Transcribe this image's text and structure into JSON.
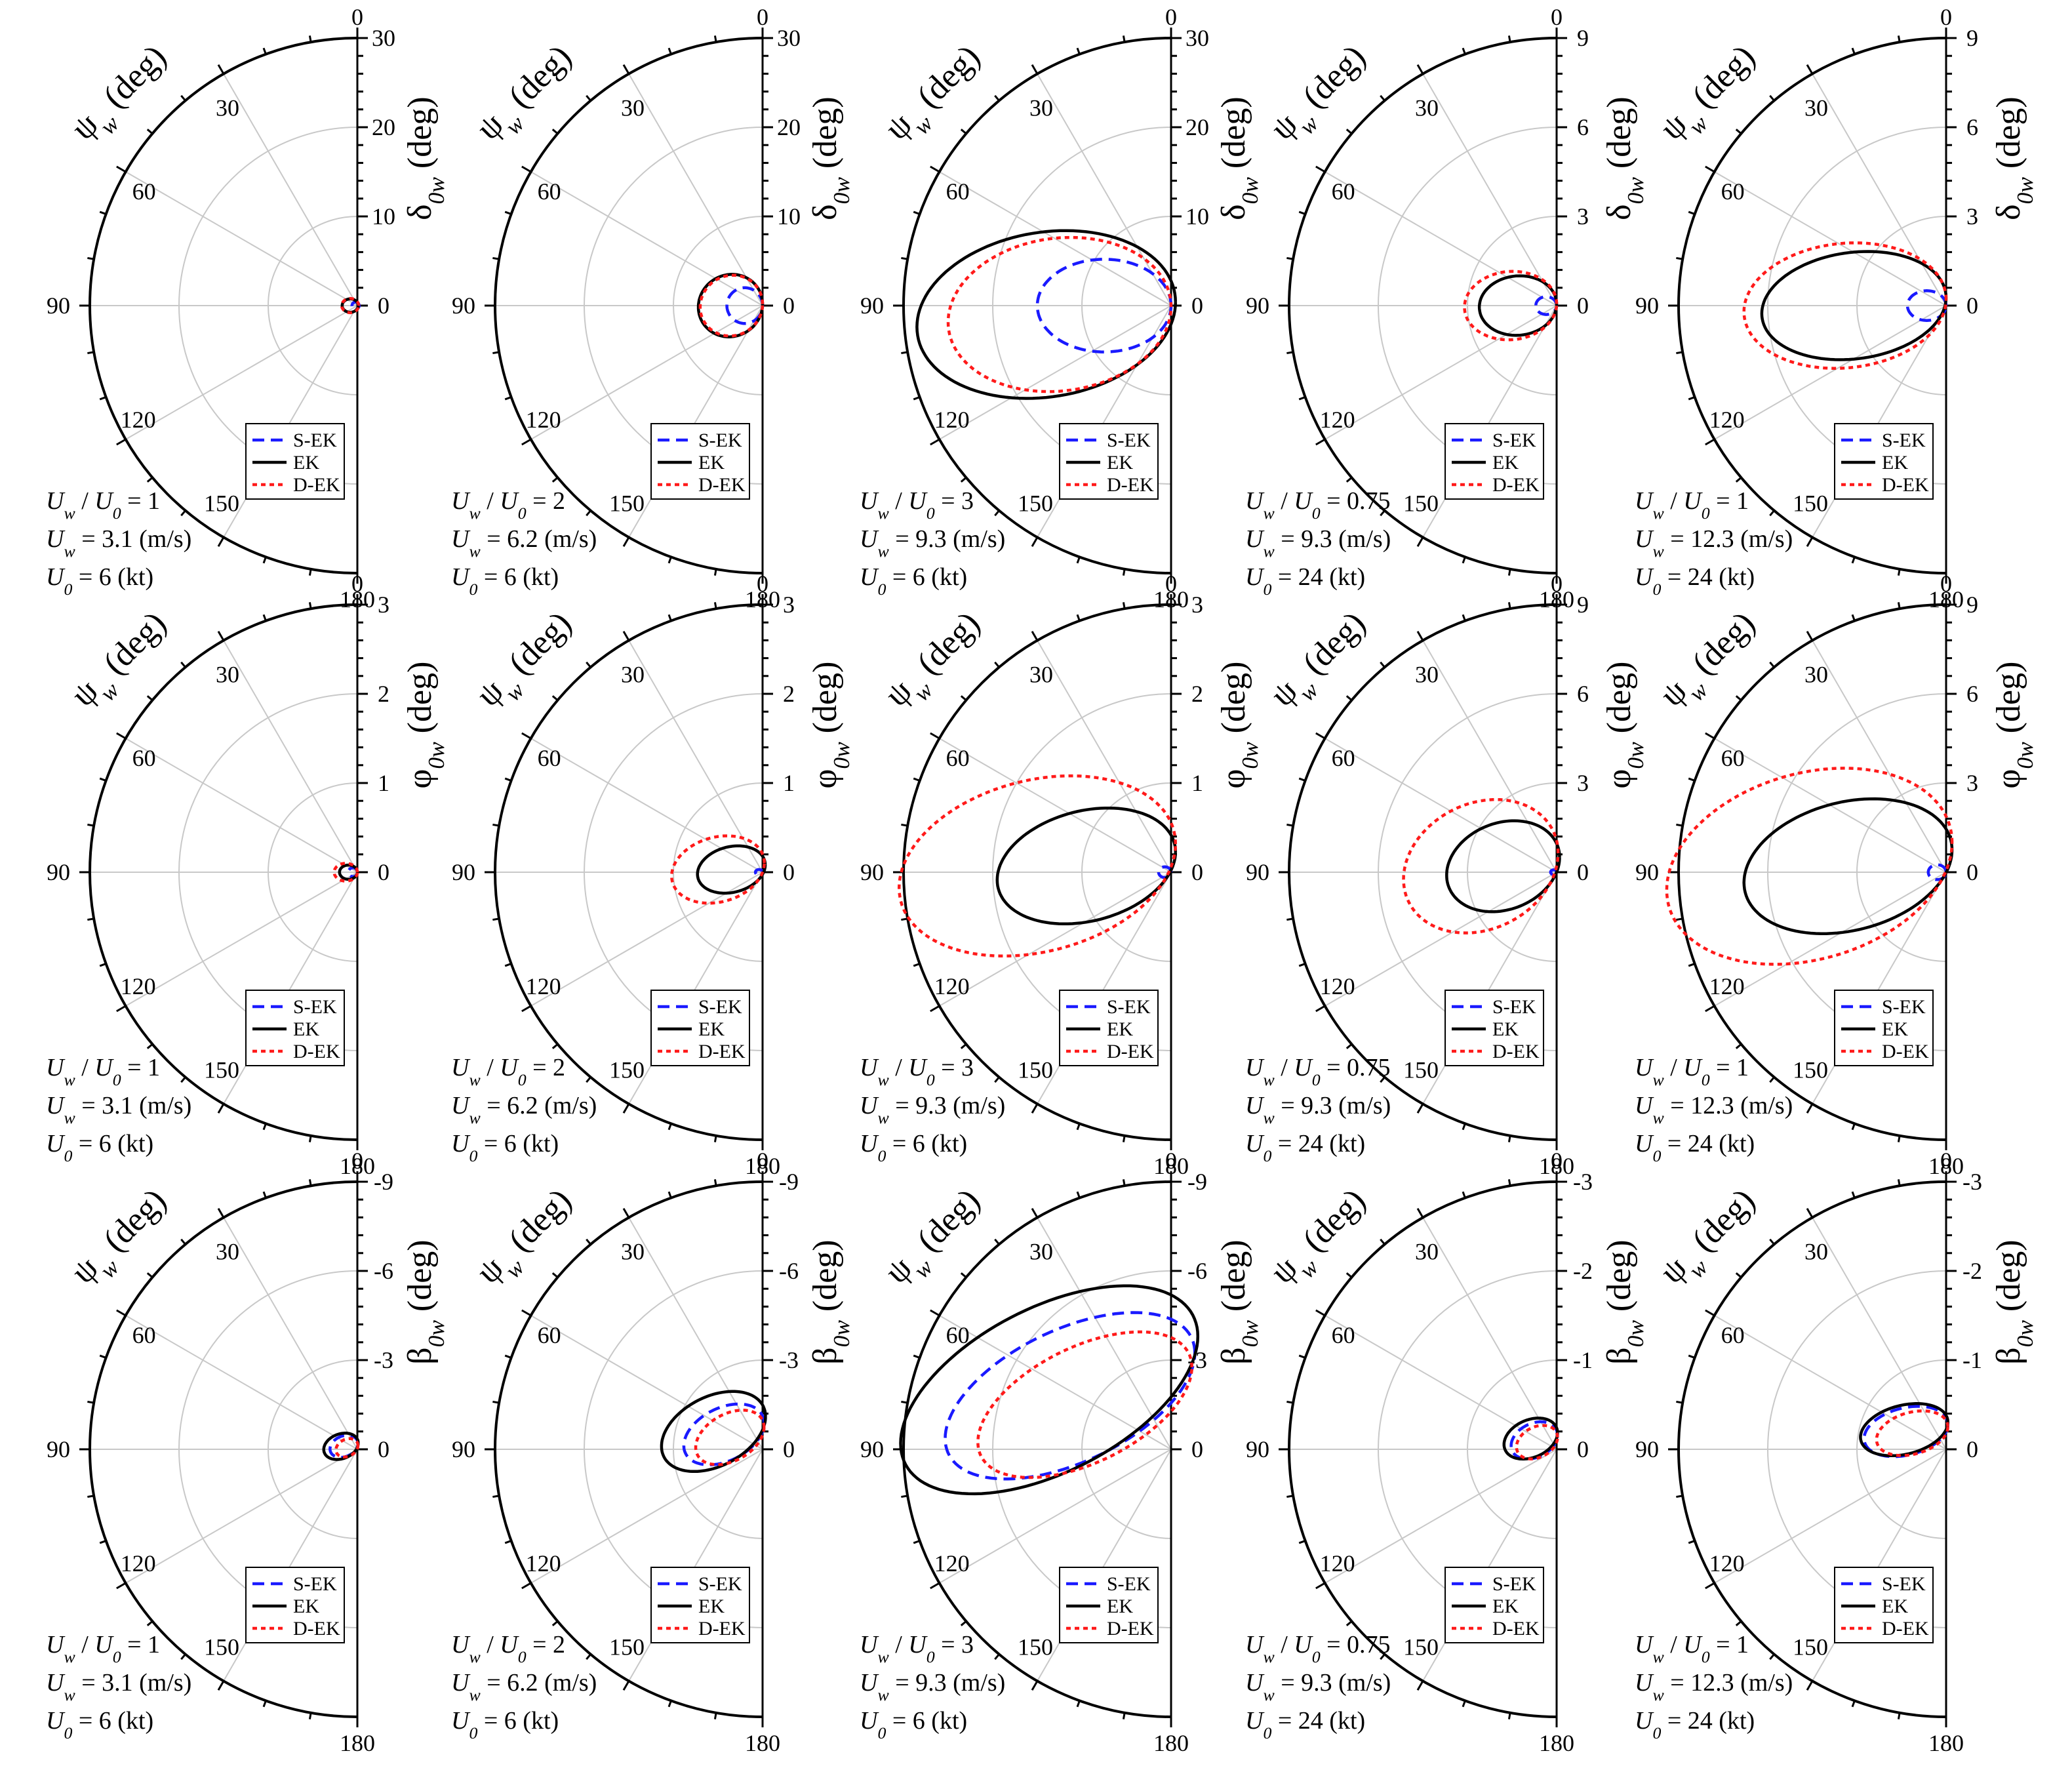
{
  "figure": {
    "legend_entries": [
      {
        "name": "S-EK",
        "color": "#1a1aff",
        "dash": "dashed"
      },
      {
        "name": "EK",
        "color": "#000000",
        "dash": "solid"
      },
      {
        "name": "D-EK",
        "color": "#ff1a1a",
        "dash": "dotted"
      }
    ],
    "angle_axis_title": "ψ_w (deg)",
    "angle_ticks": [
      "0",
      "30",
      "60",
      "90",
      "120",
      "150",
      "180"
    ],
    "case_labels": [
      [
        "U_w / U_0 = 1",
        "U_w = 3.1 (m/s)",
        "U_0 = 6 (kt)"
      ],
      [
        "U_w / U_0 = 2",
        "U_w = 6.2 (m/s)",
        "U_0 = 6 (kt)"
      ],
      [
        "U_w / U_0 = 3",
        "U_w = 9.3 (m/s)",
        "U_0 = 6 (kt)"
      ],
      [
        "U_w / U_0 = 0.75",
        "U_w = 9.3 (m/s)",
        "U_0 = 24 (kt)"
      ],
      [
        "U_w / U_0 = 1",
        "U_w = 12.3 (m/s)",
        "U_0 = 24 (kt)"
      ]
    ]
  },
  "chart_data": [
    {
      "type": "polar",
      "row": 0,
      "col": 0,
      "title": "",
      "theta_label": "ψ_w (deg)",
      "r_label": "δ_0w (deg)",
      "r_ticks": [
        "0",
        "10",
        "20",
        "30"
      ],
      "r_max": 30,
      "series": [
        {
          "name": "S-EK",
          "x0": 0.2,
          "rx": 0.4,
          "ry": 0.4,
          "y0": 0,
          "t": 0
        },
        {
          "name": "EK",
          "x0": 0.8,
          "rx": 0.9,
          "ry": 0.75,
          "y0": 0,
          "t": 0
        },
        {
          "name": "D-EK",
          "x0": 0.8,
          "rx": 0.95,
          "ry": 0.8,
          "y0": 0,
          "t": 0
        }
      ]
    },
    {
      "type": "polar",
      "row": 0,
      "col": 1,
      "title": "",
      "theta_label": "ψ_w (deg)",
      "r_label": "δ_0w (deg)",
      "r_ticks": [
        "0",
        "10",
        "20",
        "30"
      ],
      "r_max": 30,
      "series": [
        {
          "name": "S-EK",
          "x0": 2.0,
          "rx": 2.0,
          "ry": 2.0,
          "y0": 0,
          "t": 0
        },
        {
          "name": "EK",
          "x0": 3.6,
          "rx": 3.6,
          "ry": 3.5,
          "y0": 0,
          "t": 0.05
        },
        {
          "name": "D-EK",
          "x0": 3.5,
          "rx": 3.5,
          "ry": 3.4,
          "y0": 0,
          "t": 0.05
        }
      ]
    },
    {
      "type": "polar",
      "row": 0,
      "col": 2,
      "title": "",
      "theta_label": "ψ_w (deg)",
      "r_label": "δ_0w (deg)",
      "r_ticks": [
        "0",
        "10",
        "20",
        "30"
      ],
      "r_max": 30,
      "series": [
        {
          "name": "S-EK",
          "x0": 7.5,
          "rx": 7.5,
          "ry": 5.2,
          "y0": 0,
          "t": 0
        },
        {
          "name": "EK",
          "x0": 14.0,
          "rx": 14.5,
          "ry": 9.3,
          "y0": -1,
          "t": 0.15
        },
        {
          "name": "D-EK",
          "x0": 12.5,
          "rx": 12.5,
          "ry": 8.6,
          "y0": -1,
          "t": 0.1
        }
      ]
    },
    {
      "type": "polar",
      "row": 0,
      "col": 3,
      "title": "",
      "theta_label": "ψ_w (deg)",
      "r_label": "δ_0w (deg)",
      "r_ticks": [
        "0",
        "3",
        "6",
        "9"
      ],
      "r_max": 9,
      "series": [
        {
          "name": "S-EK",
          "x0": 0.35,
          "rx": 0.35,
          "ry": 0.3,
          "y0": 0,
          "t": 0
        },
        {
          "name": "EK",
          "x0": 1.3,
          "rx": 1.3,
          "ry": 1.0,
          "y0": 0,
          "t": 0.05
        },
        {
          "name": "D-EK",
          "x0": 1.55,
          "rx": 1.55,
          "ry": 1.15,
          "y0": 0,
          "t": 0.05
        }
      ]
    },
    {
      "type": "polar",
      "row": 0,
      "col": 4,
      "title": "",
      "theta_label": "ψ_w (deg)",
      "r_label": "δ_0w (deg)",
      "r_ticks": [
        "0",
        "3",
        "6",
        "9"
      ],
      "r_max": 9,
      "series": [
        {
          "name": "S-EK",
          "x0": 0.65,
          "rx": 0.65,
          "ry": 0.5,
          "y0": 0,
          "t": 0
        },
        {
          "name": "EK",
          "x0": 3.1,
          "rx": 3.1,
          "ry": 1.8,
          "y0": 0,
          "t": 0.15
        },
        {
          "name": "D-EK",
          "x0": 3.4,
          "rx": 3.4,
          "ry": 2.1,
          "y0": 0,
          "t": 0.1
        }
      ]
    },
    {
      "type": "polar",
      "row": 1,
      "col": 0,
      "title": "",
      "theta_label": "ψ_w (deg)",
      "r_label": "φ_0w (deg)",
      "r_ticks": [
        "0",
        "1",
        "2",
        "3"
      ],
      "r_max": 3,
      "series": [
        {
          "name": "S-EK",
          "x0": 0.05,
          "rx": 0.05,
          "ry": 0.05,
          "y0": 0,
          "t": 0
        },
        {
          "name": "EK",
          "x0": 0.1,
          "rx": 0.1,
          "ry": 0.08,
          "y0": 0,
          "t": 0
        },
        {
          "name": "D-EK",
          "x0": 0.13,
          "rx": 0.13,
          "ry": 0.1,
          "y0": 0,
          "t": 0
        }
      ]
    },
    {
      "type": "polar",
      "row": 1,
      "col": 1,
      "title": "",
      "theta_label": "ψ_w (deg)",
      "r_label": "φ_0w (deg)",
      "r_ticks": [
        "0",
        "1",
        "2",
        "3"
      ],
      "r_max": 3,
      "series": [
        {
          "name": "S-EK",
          "x0": 0.04,
          "rx": 0.04,
          "ry": 0.03,
          "y0": 0,
          "t": 0
        },
        {
          "name": "EK",
          "x0": 0.35,
          "rx": 0.38,
          "ry": 0.26,
          "y0": 0.03,
          "t": 0.2
        },
        {
          "name": "D-EK",
          "x0": 0.5,
          "rx": 0.52,
          "ry": 0.37,
          "y0": 0.03,
          "t": 0.2
        }
      ]
    },
    {
      "type": "polar",
      "row": 1,
      "col": 2,
      "title": "",
      "theta_label": "ψ_w (deg)",
      "r_label": "φ_0w (deg)",
      "r_ticks": [
        "0",
        "1",
        "2",
        "3"
      ],
      "r_max": 3,
      "series": [
        {
          "name": "S-EK",
          "x0": 0.07,
          "rx": 0.07,
          "ry": 0.06,
          "y0": 0,
          "t": 0
        },
        {
          "name": "EK",
          "x0": 0.95,
          "rx": 1.0,
          "ry": 0.63,
          "y0": 0.07,
          "t": 0.25
        },
        {
          "name": "D-EK",
          "x0": 1.5,
          "rx": 1.55,
          "ry": 0.98,
          "y0": 0.07,
          "t": 0.25
        }
      ]
    },
    {
      "type": "polar",
      "row": 1,
      "col": 3,
      "title": "",
      "theta_label": "ψ_w (deg)",
      "r_label": "φ_0w (deg)",
      "r_ticks": [
        "0",
        "3",
        "6",
        "9"
      ],
      "r_max": 9,
      "series": [
        {
          "name": "S-EK",
          "x0": 0.1,
          "rx": 0.1,
          "ry": 0.08,
          "y0": 0,
          "t": 0
        },
        {
          "name": "EK",
          "x0": 1.8,
          "rx": 1.9,
          "ry": 1.5,
          "y0": 0.2,
          "t": 0.2
        },
        {
          "name": "D-EK",
          "x0": 2.55,
          "rx": 2.6,
          "ry": 2.2,
          "y0": 0.2,
          "t": 0.2
        }
      ]
    },
    {
      "type": "polar",
      "row": 1,
      "col": 4,
      "title": "",
      "theta_label": "ψ_w (deg)",
      "r_label": "φ_0w (deg)",
      "r_ticks": [
        "0",
        "3",
        "6",
        "9"
      ],
      "r_max": 9,
      "series": [
        {
          "name": "S-EK",
          "x0": 0.3,
          "rx": 0.3,
          "ry": 0.25,
          "y0": 0,
          "t": 0
        },
        {
          "name": "EK",
          "x0": 3.3,
          "rx": 3.5,
          "ry": 2.2,
          "y0": 0.2,
          "t": 0.25
        },
        {
          "name": "D-EK",
          "x0": 4.6,
          "rx": 4.8,
          "ry": 3.2,
          "y0": 0.2,
          "t": 0.25
        }
      ]
    },
    {
      "type": "polar",
      "row": 2,
      "col": 0,
      "title": "",
      "theta_label": "ψ_w (deg)",
      "r_label": "β_0w (deg)",
      "r_ticks": [
        "0",
        "-3",
        "-6",
        "-9"
      ],
      "r_max": 9,
      "series": [
        {
          "name": "S-EK",
          "x0": 0.45,
          "rx": 0.47,
          "ry": 0.36,
          "y0": 0.1,
          "t": 0.25
        },
        {
          "name": "EK",
          "x0": 0.55,
          "rx": 0.58,
          "ry": 0.43,
          "y0": 0.1,
          "t": 0.25
        },
        {
          "name": "D-EK",
          "x0": 0.35,
          "rx": 0.37,
          "ry": 0.3,
          "y0": 0.05,
          "t": 0.25
        }
      ]
    },
    {
      "type": "polar",
      "row": 2,
      "col": 1,
      "title": "",
      "theta_label": "ψ_w (deg)",
      "r_label": "β_0w (deg)",
      "r_ticks": [
        "0",
        "-3",
        "-6",
        "-9"
      ],
      "r_max": 9,
      "series": [
        {
          "name": "S-EK",
          "x0": 1.3,
          "rx": 1.35,
          "ry": 0.95,
          "y0": 0.5,
          "t": 0.4
        },
        {
          "name": "EK",
          "x0": 1.65,
          "rx": 1.75,
          "ry": 1.25,
          "y0": 0.6,
          "t": 0.4
        },
        {
          "name": "D-EK",
          "x0": 1.1,
          "rx": 1.15,
          "ry": 0.85,
          "y0": 0.4,
          "t": 0.4
        }
      ]
    },
    {
      "type": "polar",
      "row": 2,
      "col": 2,
      "title": "",
      "theta_label": "ψ_w (deg)",
      "r_label": "β_0w (deg)",
      "r_ticks": [
        "0",
        "-3",
        "-6",
        "-9"
      ],
      "r_max": 9,
      "series": [
        {
          "name": "S-EK",
          "x0": 3.4,
          "rx": 4.2,
          "ry": 2.4,
          "y0": 1.8,
          "t": 0.6
        },
        {
          "name": "EK",
          "x0": 4.1,
          "rx": 5.0,
          "ry": 3.0,
          "y0": 2.0,
          "t": 0.6
        },
        {
          "name": "D-EK",
          "x0": 2.9,
          "rx": 3.6,
          "ry": 2.1,
          "y0": 1.5,
          "t": 0.6
        }
      ]
    },
    {
      "type": "polar",
      "row": 2,
      "col": 3,
      "title": "",
      "theta_label": "ψ_w (deg)",
      "r_label": "β_0w (deg)",
      "r_ticks": [
        "0",
        "-1",
        "-2",
        "-3"
      ],
      "r_max": 3,
      "series": [
        {
          "name": "S-EK",
          "x0": 0.25,
          "rx": 0.26,
          "ry": 0.2,
          "y0": 0.1,
          "t": 0.3
        },
        {
          "name": "EK",
          "x0": 0.29,
          "rx": 0.3,
          "ry": 0.22,
          "y0": 0.12,
          "t": 0.3
        },
        {
          "name": "D-EK",
          "x0": 0.22,
          "rx": 0.23,
          "ry": 0.18,
          "y0": 0.08,
          "t": 0.3
        }
      ]
    },
    {
      "type": "polar",
      "row": 2,
      "col": 4,
      "title": "",
      "theta_label": "ψ_w (deg)",
      "r_label": "β_0w (deg)",
      "r_ticks": [
        "0",
        "-1",
        "-2",
        "-3"
      ],
      "r_max": 3,
      "series": [
        {
          "name": "S-EK",
          "x0": 0.45,
          "rx": 0.47,
          "ry": 0.27,
          "y0": 0.2,
          "t": 0.3
        },
        {
          "name": "EK",
          "x0": 0.47,
          "rx": 0.49,
          "ry": 0.28,
          "y0": 0.22,
          "t": 0.3
        },
        {
          "name": "D-EK",
          "x0": 0.38,
          "rx": 0.4,
          "ry": 0.24,
          "y0": 0.18,
          "t": 0.3
        }
      ]
    }
  ]
}
